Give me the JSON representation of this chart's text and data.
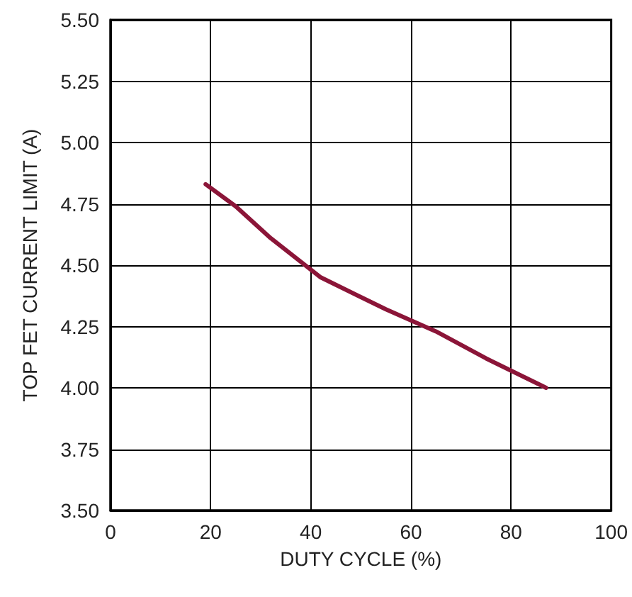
{
  "chart_data": {
    "type": "line",
    "xlabel": "DUTY CYCLE (%)",
    "ylabel": "TOP FET CURRENT LIMIT (A)",
    "x": [
      19,
      25,
      32,
      42,
      55,
      65,
      75,
      87
    ],
    "series": [
      {
        "color": "#8b1538",
        "values": [
          4.83,
          4.74,
          4.61,
          4.45,
          4.32,
          4.23,
          4.12,
          4.0
        ]
      }
    ],
    "xlim": [
      0,
      100
    ],
    "xticks": [
      0,
      20,
      40,
      60,
      80,
      100
    ],
    "ylim": [
      3.5,
      5.5
    ],
    "yticks": [
      {
        "value": 3.5,
        "label": "3.50"
      },
      {
        "value": 3.75,
        "label": "3.75"
      },
      {
        "value": 4,
        "label": "4.00"
      },
      {
        "value": 4.25,
        "label": "4.25"
      },
      {
        "value": 4.5,
        "label": "4.50"
      },
      {
        "value": 4.75,
        "label": "4.75"
      },
      {
        "value": 5,
        "label": "5.00"
      },
      {
        "value": 5.25,
        "label": "5.25"
      },
      {
        "value": 5.5,
        "label": "5.50"
      }
    ],
    "grid": true,
    "marker": "none",
    "line_style": "solid"
  }
}
